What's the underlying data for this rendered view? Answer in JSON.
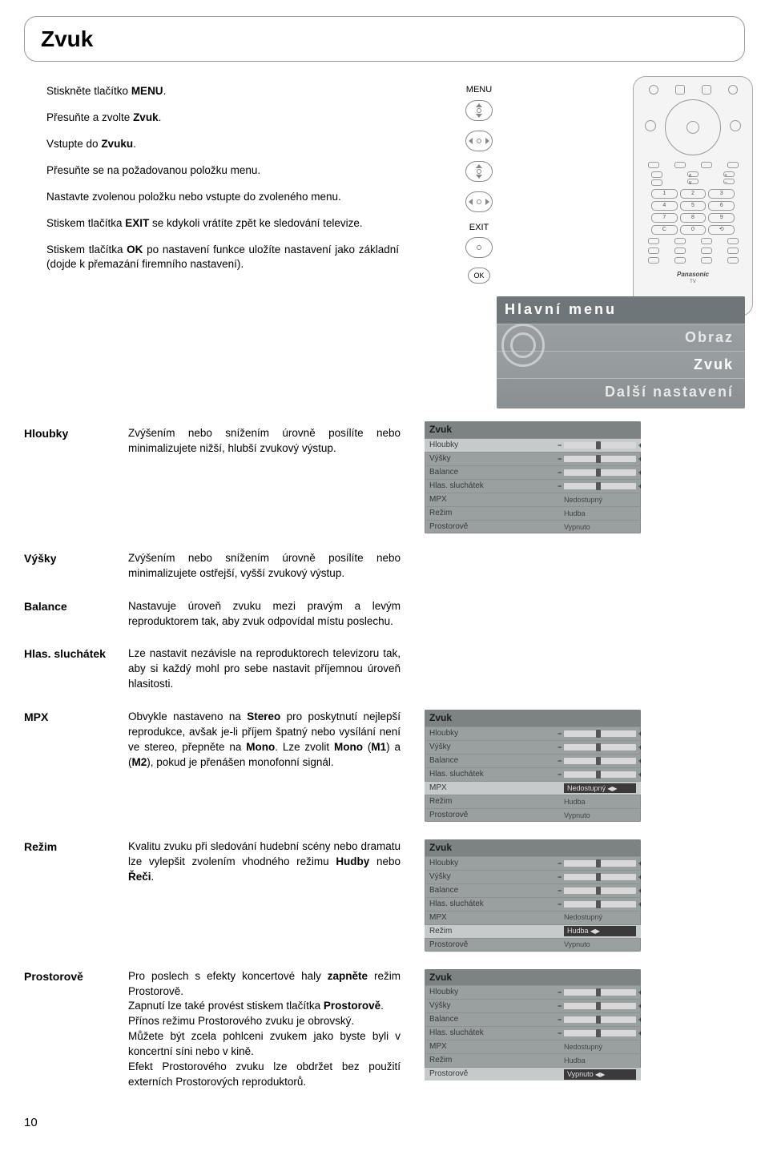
{
  "page": {
    "title": "Zvuk",
    "number": "10"
  },
  "intro": [
    "Stiskněte tlačítko MENU.",
    "Přesuňte a zvolte Zvuk.",
    "Vstupte do Zvuku.",
    "Přesuňte se na požadovanou položku menu.",
    "Nastavte zvolenou položku nebo vstupte do zvoleného menu.",
    "Stiskem tlačítka EXIT se kdykoli vrátíte zpět ke sledování televize.",
    "Stiskem tlačítka OK po nastavení funkce uložíte nastavení jako základní (dojde k přemazání firemního nastavení)."
  ],
  "nav_labels": {
    "menu": "MENU",
    "exit": "EXIT",
    "ok": "OK"
  },
  "remote": {
    "nums": [
      "1",
      "2",
      "3",
      "4",
      "5",
      "6",
      "7",
      "8",
      "9",
      "C",
      "0",
      "⟲"
    ],
    "brand": "Panasonic",
    "brand2": "TV"
  },
  "main_menu": {
    "header": "Hlavní menu",
    "items": [
      "Obraz",
      "Zvuk",
      "Další nastavení"
    ]
  },
  "definitions": {
    "hloubky": {
      "term": "Hloubky",
      "text": "Zvýšením nebo snížením úrovně posílíte nebo minimalizujete nižší, hlubší zvukový výstup."
    },
    "vysky": {
      "term": "Výšky",
      "text": "Zvýšením nebo snížením úrovně posílíte nebo minimalizujete ostřejší, vyšší zvukový výstup."
    },
    "balance": {
      "term": "Balance",
      "text": "Nastavuje úroveň zvuku mezi pravým a levým reproduktorem tak, aby zvuk odpovídal místu poslechu."
    },
    "hlas": {
      "term": "Hlas. sluchátek",
      "text": "Lze nastavit nezávisle na reproduktorech televizoru tak, aby si každý mohl pro sebe nastavit příjemnou úroveň hlasitosti."
    },
    "mpx": {
      "term": "MPX",
      "text": "Obvykle nastaveno na Stereo pro poskytnutí nejlepší reprodukce, avšak je-li příjem špatný nebo vysílání není ve stereo, přepněte na Mono. Lze zvolit Mono (M1) a (M2), pokud je přenášen monofonní signál."
    },
    "rezim": {
      "term": "Režim",
      "text": "Kvalitu zvuku při sledování hudební scény nebo dramatu lze vylepšit zvolením vhodného režimu Hudby nebo Řeči."
    },
    "prost": {
      "term": "Prostorově",
      "text": "Pro poslech s efekty koncertové haly zapněte režim Prostorově.\nZapnutí lze také provést stiskem tlačítka Prostorově.\nPřínos režimu Prostorového zvuku je obrovský.\nMůžete být zcela pohlceni zvukem jako byste byli v koncertní síni nebo v kině.\nEfekt Prostorového zvuku lze obdržet bez použití externích Prostorových reproduktorů."
    }
  },
  "osd": {
    "title": "Zvuk",
    "rows": [
      {
        "label": "Hloubky",
        "type": "slider"
      },
      {
        "label": "Výšky",
        "type": "slider"
      },
      {
        "label": "Balance",
        "type": "slider"
      },
      {
        "label": "Hlas. sluchátek",
        "type": "slider"
      },
      {
        "label": "MPX",
        "type": "value",
        "value": "Nedostupný"
      },
      {
        "label": "Režim",
        "type": "value",
        "value": "Hudba"
      },
      {
        "label": "Prostorově",
        "type": "value",
        "value": "Vypnuto"
      }
    ],
    "highlight_by_box": {
      "1": 0,
      "2": 4,
      "3": 5,
      "4": 6
    }
  },
  "style": {
    "banner_bg": "#9ea3a6",
    "banner_hdr_bg": "#6f7679",
    "osd_bg": "#9a9f9f",
    "osd_hdr_bg": "#7d8282",
    "osd_hl_bg": "#c7caca"
  }
}
